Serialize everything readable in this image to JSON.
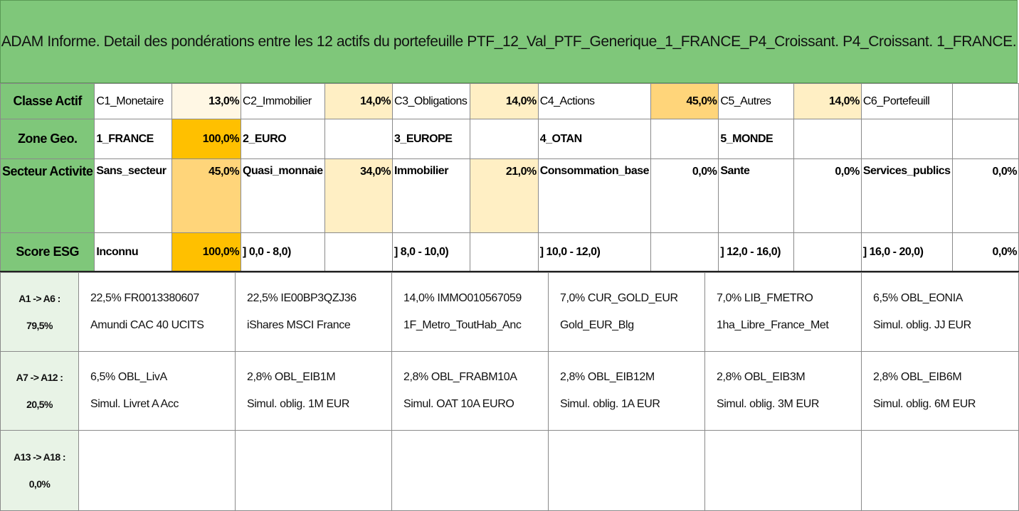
{
  "title": "ADAM Informe. Detail des pondérations entre les 12 actifs du portefeuille PTF_12_Val_PTF_Generique_1_FRANCE_P4_Croissant. P4_Croissant. 1_FRANCE.",
  "colors": {
    "header_green": "#7fc77a",
    "weight_low": "#fff7e4",
    "weight_mid": "#ffefc4",
    "weight_high": "#ffd57a",
    "weight_full": "#ffc000"
  },
  "classe_actif": {
    "label": "Classe Actif",
    "items": [
      {
        "name": "C1_Monetaire",
        "pct": "13,0%"
      },
      {
        "name": "C2_Immobilier",
        "pct": "14,0%"
      },
      {
        "name": "C3_Obligations",
        "pct": "14,0%"
      },
      {
        "name": "C4_Actions",
        "pct": "45,0%"
      },
      {
        "name": "C5_Autres",
        "pct": "14,0%"
      },
      {
        "name": "C6_Portefeuill",
        "pct": ""
      }
    ]
  },
  "zone_geo": {
    "label": "Zone Geo.",
    "items": [
      {
        "name": "1_FRANCE",
        "pct": "100,0%"
      },
      {
        "name": "2_EURO",
        "pct": ""
      },
      {
        "name": "3_EUROPE",
        "pct": ""
      },
      {
        "name": "4_OTAN",
        "pct": ""
      },
      {
        "name": "5_MONDE",
        "pct": ""
      },
      {
        "name": "",
        "pct": ""
      }
    ]
  },
  "secteur": {
    "label": "Secteur Activite",
    "items": [
      {
        "name": "Sans_secteur",
        "pct": "45,0%"
      },
      {
        "name": "Quasi_monnaie",
        "pct": "34,0%"
      },
      {
        "name": "Immobilier",
        "pct": "21,0%"
      },
      {
        "name": "Consommation_base",
        "pct": "0,0%"
      },
      {
        "name": "Sante",
        "pct": "0,0%"
      },
      {
        "name": "Services_publics",
        "pct": "0,0%"
      }
    ]
  },
  "score_esg": {
    "label": "Score ESG",
    "items": [
      {
        "name": "Inconnu",
        "pct": "100,0%"
      },
      {
        "name": "] 0,0 - 8,0)",
        "pct": ""
      },
      {
        "name": "] 8,0 - 10,0)",
        "pct": ""
      },
      {
        "name": "] 10,0 - 12,0)",
        "pct": ""
      },
      {
        "name": "] 12,0 - 16,0)",
        "pct": ""
      },
      {
        "name": "] 16,0 - 20,0)",
        "pct": "0,0%"
      }
    ]
  },
  "asset_rows": [
    {
      "label_top": "A1 -> A6 :",
      "label_bottom": "79,5%",
      "assets": [
        {
          "line1": "22,5% FR0013380607",
          "line2": "Amundi CAC 40 UCITS"
        },
        {
          "line1": "22,5% IE00BP3QZJ36",
          "line2": "iShares MSCI France"
        },
        {
          "line1": "14,0% IMMO010567059",
          "line2": "1F_Metro_ToutHab_Anc"
        },
        {
          "line1": "7,0% CUR_GOLD_EUR",
          "line2": "Gold_EUR_Blg"
        },
        {
          "line1": "7,0% LIB_FMETRO",
          "line2": "1ha_Libre_France_Met"
        },
        {
          "line1": "6,5% OBL_EONIA",
          "line2": "Simul. oblig. JJ EUR"
        }
      ]
    },
    {
      "label_top": "A7 -> A12 :",
      "label_bottom": "20,5%",
      "assets": [
        {
          "line1": "6,5% OBL_LivA",
          "line2": "Simul. Livret A Acc"
        },
        {
          "line1": "2,8% OBL_EIB1M",
          "line2": "Simul. oblig. 1M EUR"
        },
        {
          "line1": "2,8% OBL_FRABM10A",
          "line2": "Simul. OAT 10A EURO"
        },
        {
          "line1": "2,8% OBL_EIB12M",
          "line2": "Simul. oblig. 1A EUR"
        },
        {
          "line1": "2,8% OBL_EIB3M",
          "line2": "Simul. oblig. 3M EUR"
        },
        {
          "line1": "2,8% OBL_EIB6M",
          "line2": "Simul. oblig. 6M EUR"
        }
      ]
    },
    {
      "label_top": "A13 -> A18 :",
      "label_bottom": "0,0%",
      "assets": [
        {
          "line1": "",
          "line2": ""
        },
        {
          "line1": "",
          "line2": ""
        },
        {
          "line1": "",
          "line2": ""
        },
        {
          "line1": "",
          "line2": ""
        },
        {
          "line1": "",
          "line2": ""
        },
        {
          "line1": "",
          "line2": ""
        }
      ]
    }
  ]
}
